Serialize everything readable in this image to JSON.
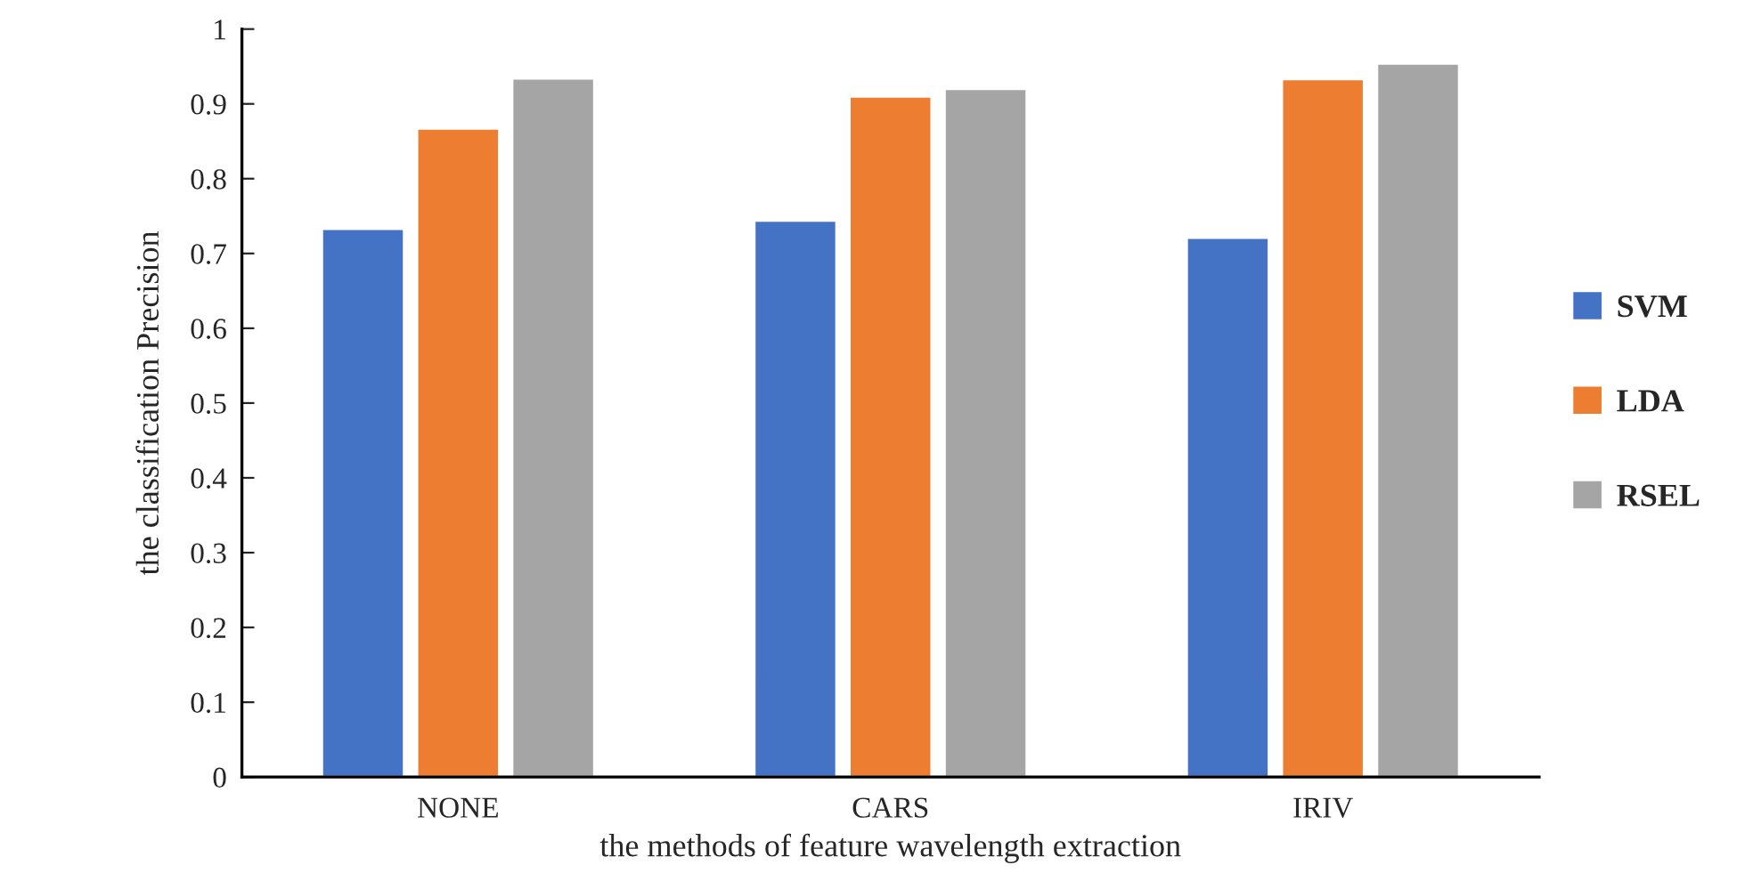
{
  "chart_data": {
    "type": "bar",
    "categories": [
      "NONE",
      "CARS",
      "IRIV"
    ],
    "series": [
      {
        "name": "SVM",
        "color": "#4472c4",
        "values": [
          0.733,
          0.744,
          0.721
        ]
      },
      {
        "name": "LDA",
        "color": "#ed7d31",
        "values": [
          0.867,
          0.91,
          0.933
        ]
      },
      {
        "name": "RSEL",
        "color": "#a5a5a5",
        "values": [
          0.934,
          0.92,
          0.954
        ]
      }
    ],
    "xlabel": "the methods of feature wavelength extraction",
    "ylabel": "the classification Precision",
    "ylim": [
      0,
      1
    ],
    "yticks": [
      {
        "value": 0,
        "label": "0"
      },
      0.1,
      0.2,
      0.3,
      0.4,
      0.5,
      0.6,
      0.7,
      0.8,
      0.9,
      {
        "value": 1,
        "label": "1"
      }
    ],
    "legend": "right",
    "grid": false
  }
}
